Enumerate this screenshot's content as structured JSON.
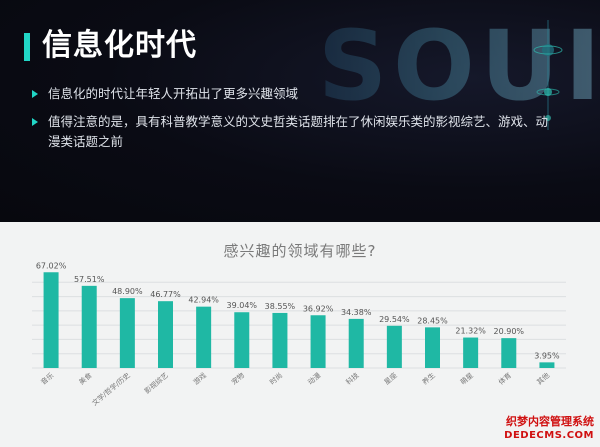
{
  "header": {
    "title": "信息化时代",
    "bullets": [
      "信息化的时代让年轻人开拓出了更多兴趣领域",
      "值得注意的是，具有科普教学意义的文史哲类话题排在了休闲娱乐类的影视综艺、游戏、动漫类话题之前"
    ],
    "bg_word": "SOUI",
    "accent_color": "#21d6c6"
  },
  "chart_data": {
    "type": "bar",
    "title": "感兴趣的领域有哪些?",
    "xlabel": "",
    "ylabel": "",
    "ylim": [
      0,
      70
    ],
    "grid": true,
    "bar_color": "#1fb8a4",
    "categories": [
      "音乐",
      "美食",
      "文学/哲学/历史",
      "影视综艺",
      "游戏",
      "宠物",
      "时尚",
      "动漫",
      "科技",
      "星座",
      "养生",
      "萌星",
      "体育",
      "其他"
    ],
    "values": [
      67.02,
      57.51,
      48.9,
      46.77,
      42.94,
      39.04,
      38.55,
      36.92,
      34.38,
      29.54,
      28.45,
      21.32,
      20.9,
      3.95
    ],
    "value_labels": [
      "67.02%",
      "57.51%",
      "48.90%",
      "46.77%",
      "42.94%",
      "39.04%",
      "38.55%",
      "36.92%",
      "34.38%",
      "29.54%",
      "28.45%",
      "21.32%",
      "20.90%",
      "3.95%"
    ]
  },
  "watermark": {
    "line1": "织梦内容管理系统",
    "line2": "DEDECMS.COM"
  }
}
